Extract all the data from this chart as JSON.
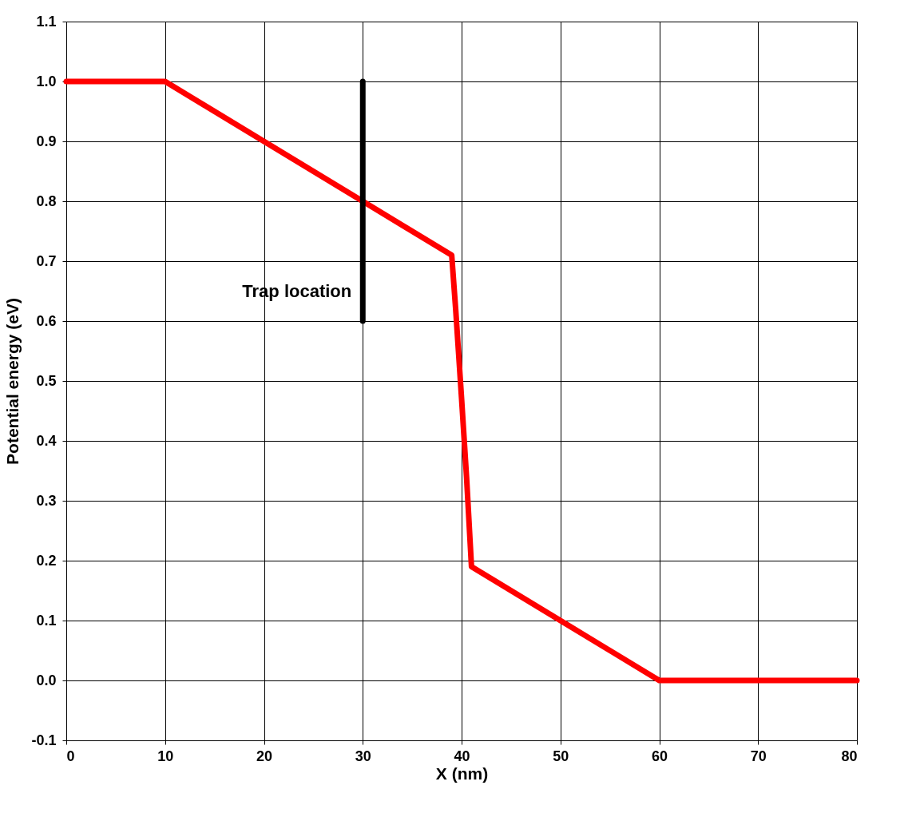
{
  "chart_data": {
    "type": "line",
    "xlabel": "X (nm)",
    "ylabel": "Potential energy (eV)",
    "series": [
      {
        "color": "#ff0000",
        "x": [
          0,
          10,
          20,
          30,
          39,
          39.4,
          40,
          40.5,
          41,
          50,
          60,
          80
        ],
        "values": [
          1.0,
          1.0,
          0.9,
          0.8,
          0.71,
          0.62,
          0.47,
          0.34,
          0.19,
          0.1,
          0.0,
          0.0
        ]
      },
      {
        "color": "#000000",
        "x": [
          30,
          30
        ],
        "values": [
          0.6,
          1.0
        ]
      }
    ],
    "annotations": [
      {
        "text": "Trap location",
        "x": 30,
        "y": 0.65
      }
    ],
    "xlim": [
      0,
      80
    ],
    "xticks": [
      0,
      10,
      20,
      30,
      40,
      50,
      60,
      70,
      80
    ],
    "ylim": [
      -0.1,
      1.1
    ],
    "yticks": [
      {
        "value": -0.1,
        "label": "-0.1"
      },
      {
        "value": 0,
        "label": "0.0"
      },
      0.1,
      0.2,
      0.3,
      0.4,
      0.5,
      0.6,
      0.7,
      0.8,
      0.9,
      {
        "value": 1,
        "label": "1.0"
      },
      1.1
    ],
    "grid": true,
    "marker": "none",
    "line_style": "solid"
  }
}
